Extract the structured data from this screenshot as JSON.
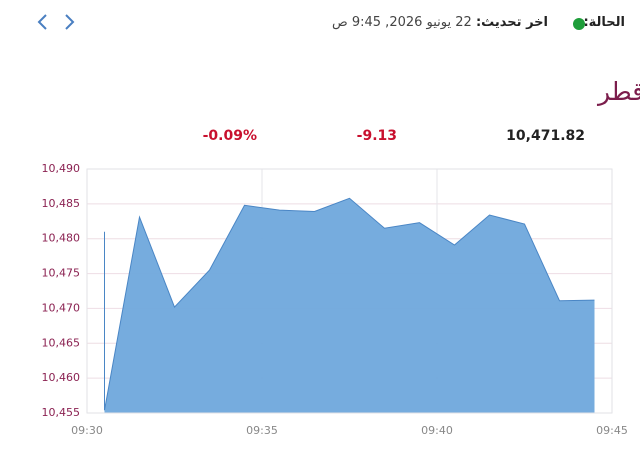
{
  "header": {
    "status_label": "الحالة:",
    "update_label": "اخر تحديث:",
    "update_time": "22 يونيو 2026, 9:45 ص"
  },
  "quote": {
    "value": "10,471.82",
    "change": "-9.13",
    "change_percent": "-0.09%"
  },
  "chart_data": {
    "type": "area",
    "title": "مؤشر بورصة قطر",
    "x": [
      570.5,
      570.5,
      571.5,
      572.5,
      573.5,
      574.5,
      575.5,
      576.5,
      577.5,
      578.5,
      579.5,
      580.5,
      581.5,
      582.5,
      583.5,
      584.5
    ],
    "series": [
      {
        "color": "#6fa8dc",
        "values": [
          10481.0,
          10455.4,
          10483.1,
          10470.2,
          10475.5,
          10484.8,
          10484.1,
          10483.9,
          10485.8,
          10481.5,
          10482.3,
          10479.1,
          10483.4,
          10482.1,
          10471.1,
          10471.2
        ]
      }
    ],
    "xlim": [
      570,
      585
    ],
    "xticks": [
      {
        "value": 570,
        "label": "09:30"
      },
      {
        "value": 575,
        "label": "09:35"
      },
      {
        "value": 580,
        "label": "09:40"
      },
      {
        "value": 585,
        "label": "09:45"
      }
    ],
    "ylim": [
      10455,
      10490
    ],
    "yticks": [
      {
        "value": 10455,
        "label": "10,455"
      },
      {
        "value": 10460,
        "label": "10,460"
      },
      {
        "value": 10465,
        "label": "10,465"
      },
      {
        "value": 10470,
        "label": "10,470"
      },
      {
        "value": 10475,
        "label": "10,475"
      },
      {
        "value": 10480,
        "label": "10,480"
      },
      {
        "value": 10485,
        "label": "10,485"
      },
      {
        "value": 10490,
        "label": "10,490"
      }
    ],
    "grid": true
  }
}
